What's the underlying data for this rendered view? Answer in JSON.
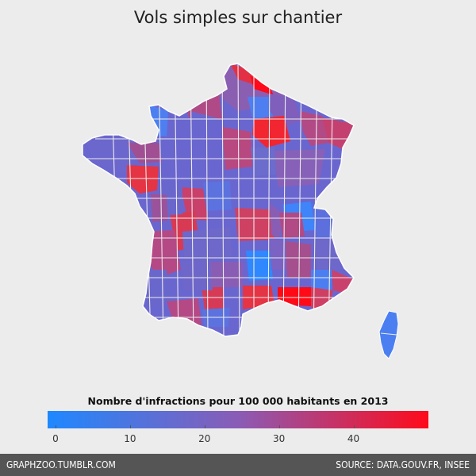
{
  "title": "Vols simples sur chantier",
  "legend": {
    "title": "Nombre d'infractions pour 100 000 habitants en 2013",
    "min": 0,
    "max": 49,
    "ticks": [
      {
        "value": 0,
        "label": "0"
      },
      {
        "value": 10,
        "label": "10"
      },
      {
        "value": 20,
        "label": "20"
      },
      {
        "value": 30,
        "label": "30"
      },
      {
        "value": 40,
        "label": "40"
      }
    ],
    "color_low": "#1e88ff",
    "color_mid": "#8a5cb6",
    "color_high": "#ff0a1a"
  },
  "footer": {
    "left": "GRAPHZOO.TUMBLR.COM",
    "right": "SOURCE: DATA.GOUV.FR, INSEE"
  },
  "chart_data": {
    "type": "choropleth",
    "region": "France (départements)",
    "values_approx": [
      {
        "area": "Nord",
        "value": 47
      },
      {
        "area": "Pas-de-Calais",
        "value": 30
      },
      {
        "area": "Marne",
        "value": 46
      },
      {
        "area": "Meuse/Moselle",
        "value": 40
      },
      {
        "area": "Bas-Rhin",
        "value": 38
      },
      {
        "area": "Loire-Atlantique",
        "value": 38
      },
      {
        "area": "Vienne",
        "value": 34
      },
      {
        "area": "Charente",
        "value": 32
      },
      {
        "area": "Cher/Allier",
        "value": 32
      },
      {
        "area": "Bouches-du-Rhône",
        "value": 49
      },
      {
        "area": "Hérault",
        "value": 36
      },
      {
        "area": "Aisne",
        "value": 4
      },
      {
        "area": "Manche",
        "value": 6
      },
      {
        "area": "Saône-et-Loire/Ain",
        "value": 2
      },
      {
        "area": "Cantal",
        "value": 1
      },
      {
        "area": "Corse",
        "value": 6
      },
      {
        "area": "Var",
        "value": 30
      }
    ]
  }
}
